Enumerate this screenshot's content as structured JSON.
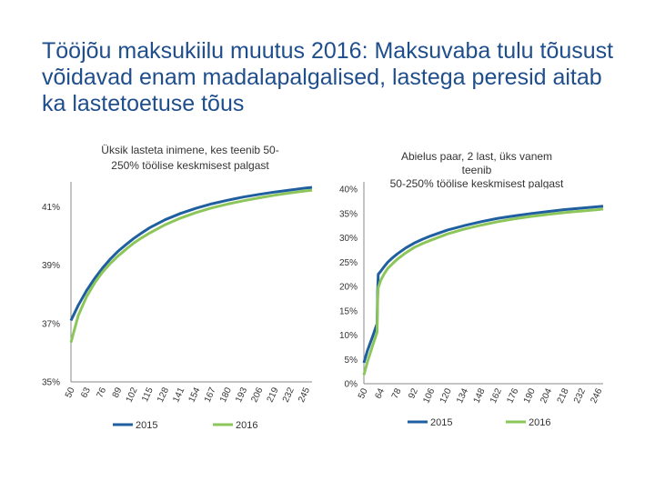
{
  "slide": {
    "title": "Tööjõu maksukiilu muutus 2016: Maksuvaba tulu tõusust võidavad enam madalapalgalised, lastega peresid aitab ka lastetoetuse tõus"
  },
  "colors": {
    "series_2015": "#1f5fa0",
    "series_2016": "#8cc65a",
    "axis": "#888888",
    "text": "#333333",
    "title": "#1f4e8c"
  },
  "chart_data": [
    {
      "type": "line",
      "title_lines": [
        "Üksik lasteta inimene, kes teenib 50-",
        "250% töölise keskmisest palgast"
      ],
      "x_tick_labels": [
        "50",
        "63",
        "76",
        "89",
        "102",
        "115",
        "128",
        "141",
        "154",
        "167",
        "180",
        "193",
        "206",
        "219",
        "232",
        "245"
      ],
      "y_tick_labels": [
        "35%",
        "37%",
        "39%",
        "41%"
      ],
      "ylim": [
        35,
        41.6
      ],
      "xlim": [
        50,
        250
      ],
      "series": [
        {
          "name": "2015",
          "x": [
            50,
            56,
            63,
            70,
            76,
            83,
            89,
            96,
            102,
            109,
            115,
            128,
            141,
            154,
            167,
            180,
            193,
            206,
            219,
            232,
            245,
            250
          ],
          "y": [
            37.1,
            37.62,
            38.13,
            38.56,
            38.89,
            39.22,
            39.47,
            39.71,
            39.91,
            40.11,
            40.27,
            40.55,
            40.77,
            40.95,
            41.1,
            41.22,
            41.33,
            41.42,
            41.5,
            41.57,
            41.64,
            41.66
          ]
        },
        {
          "name": "2016",
          "x": [
            50,
            56,
            63,
            70,
            76,
            83,
            89,
            96,
            102,
            109,
            115,
            128,
            141,
            154,
            167,
            180,
            193,
            206,
            219,
            232,
            245,
            250
          ],
          "y": [
            36.35,
            37.27,
            37.92,
            38.41,
            38.75,
            39.07,
            39.31,
            39.55,
            39.75,
            39.94,
            40.09,
            40.38,
            40.61,
            40.8,
            40.96,
            41.09,
            41.2,
            41.3,
            41.39,
            41.47,
            41.54,
            41.56
          ]
        }
      ],
      "legend": [
        "2015",
        "2016"
      ]
    },
    {
      "type": "line",
      "title_lines": [
        "Abielus paar, 2 last, üks vanem",
        "teenib",
        "50-250% töölise keskmisest palgast"
      ],
      "x_tick_labels": [
        "50",
        "64",
        "78",
        "92",
        "106",
        "120",
        "134",
        "148",
        "162",
        "176",
        "190",
        "204",
        "218",
        "232",
        "246"
      ],
      "y_tick_labels": [
        "0%",
        "5%",
        "10%",
        "15%",
        "20%",
        "25%",
        "30%",
        "35%",
        "40%"
      ],
      "ylim": [
        0,
        40
      ],
      "xlim": [
        50,
        250
      ],
      "series": [
        {
          "name": "2015",
          "x": [
            50,
            53,
            57,
            60,
            61,
            61.5,
            62,
            64,
            67,
            70,
            74,
            78,
            85,
            92,
            99,
            106,
            120,
            134,
            148,
            162,
            176,
            190,
            204,
            218,
            232,
            246,
            250
          ],
          "y": [
            4.3,
            6.8,
            9.5,
            11.6,
            12.3,
            19,
            22.5,
            23.1,
            24.1,
            25,
            25.9,
            26.7,
            27.9,
            28.9,
            29.7,
            30.4,
            31.6,
            32.5,
            33.3,
            34,
            34.5,
            35,
            35.4,
            35.8,
            36.1,
            36.4,
            36.5
          ]
        },
        {
          "name": "2016",
          "x": [
            50,
            53,
            57,
            60,
            61,
            61.5,
            62,
            64,
            67,
            70,
            74,
            78,
            85,
            92,
            99,
            106,
            120,
            134,
            148,
            162,
            176,
            190,
            204,
            218,
            232,
            246,
            250
          ],
          "y": [
            1.8,
            4.5,
            7.6,
            9.8,
            10.6,
            17.2,
            19.8,
            21.2,
            22.6,
            23.7,
            24.7,
            25.6,
            26.9,
            28,
            28.8,
            29.5,
            30.8,
            31.8,
            32.6,
            33.3,
            33.9,
            34.4,
            34.8,
            35.2,
            35.5,
            35.8,
            35.9
          ]
        }
      ],
      "legend": [
        "2015",
        "2016"
      ]
    }
  ]
}
